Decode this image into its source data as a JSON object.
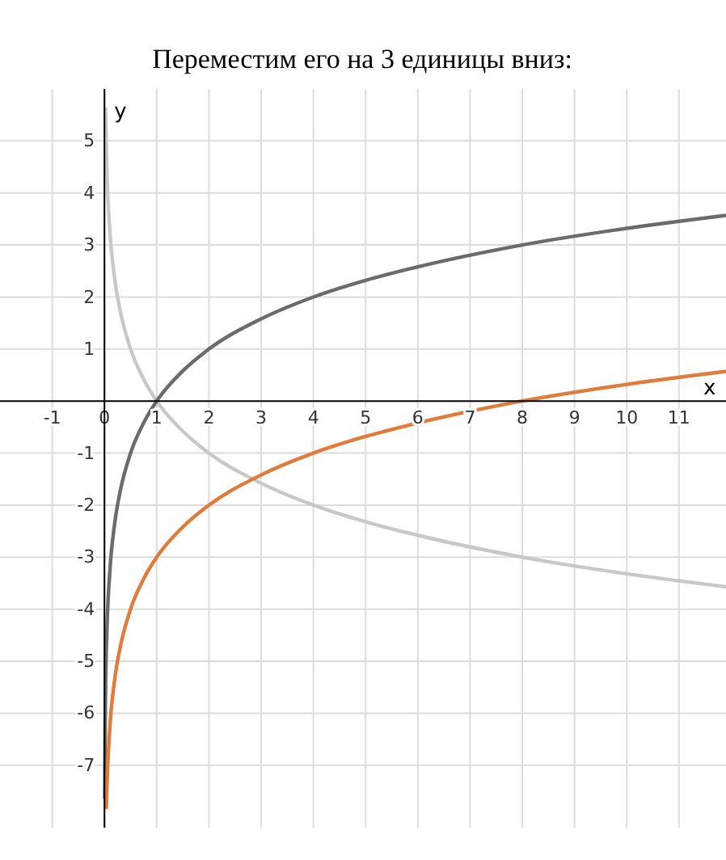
{
  "chart_data": {
    "type": "line",
    "title": "Переместим его на 3 единицы вниз:",
    "xlabel": "x",
    "ylabel": "y",
    "xlim": [
      -2,
      11.9
    ],
    "ylim": [
      -8.2,
      6
    ],
    "xticks": [
      -1,
      0,
      1,
      2,
      3,
      4,
      5,
      6,
      7,
      8,
      9,
      10,
      11
    ],
    "yticks": [
      -7,
      -6,
      -5,
      -4,
      -3,
      -2,
      -1,
      1,
      2,
      3,
      4,
      5
    ],
    "grid": true,
    "marker": "none",
    "line_style": "solid",
    "series": [
      {
        "color": "#c8c8c8",
        "x": [
          0.02,
          0.05,
          0.1,
          0.2,
          0.3,
          0.5,
          0.75,
          1,
          1.5,
          2,
          3,
          4,
          5,
          6,
          8,
          10,
          11.9
        ],
        "values": [
          5.64,
          4.32,
          3.32,
          2.32,
          1.74,
          1,
          0.42,
          0,
          -0.58,
          -1,
          -1.58,
          -2,
          -2.32,
          -2.58,
          -3,
          -3.32,
          -3.57
        ]
      },
      {
        "color": "#6b6b6b",
        "x": [
          0.005,
          0.01,
          0.02,
          0.05,
          0.1,
          0.2,
          0.3,
          0.5,
          0.75,
          1,
          1.5,
          2,
          3,
          4,
          5,
          6,
          8,
          10,
          11.9
        ],
        "values": [
          -7.64,
          -6.64,
          -5.64,
          -4.32,
          -3.32,
          -2.32,
          -1.74,
          -1,
          -0.42,
          0,
          0.58,
          1,
          1.58,
          2,
          2.32,
          2.58,
          3,
          3.32,
          3.57
        ]
      },
      {
        "color": "#e07b39",
        "x": [
          0.035,
          0.05,
          0.1,
          0.2,
          0.3,
          0.5,
          0.75,
          1,
          1.5,
          2,
          3,
          4,
          5,
          6,
          8,
          10,
          11.9
        ],
        "values": [
          -7.84,
          -7.32,
          -6.32,
          -5.32,
          -4.74,
          -4,
          -3.42,
          -3,
          -2.42,
          -2,
          -1.42,
          -1,
          -0.68,
          -0.42,
          0,
          0.32,
          0.57
        ]
      }
    ]
  }
}
